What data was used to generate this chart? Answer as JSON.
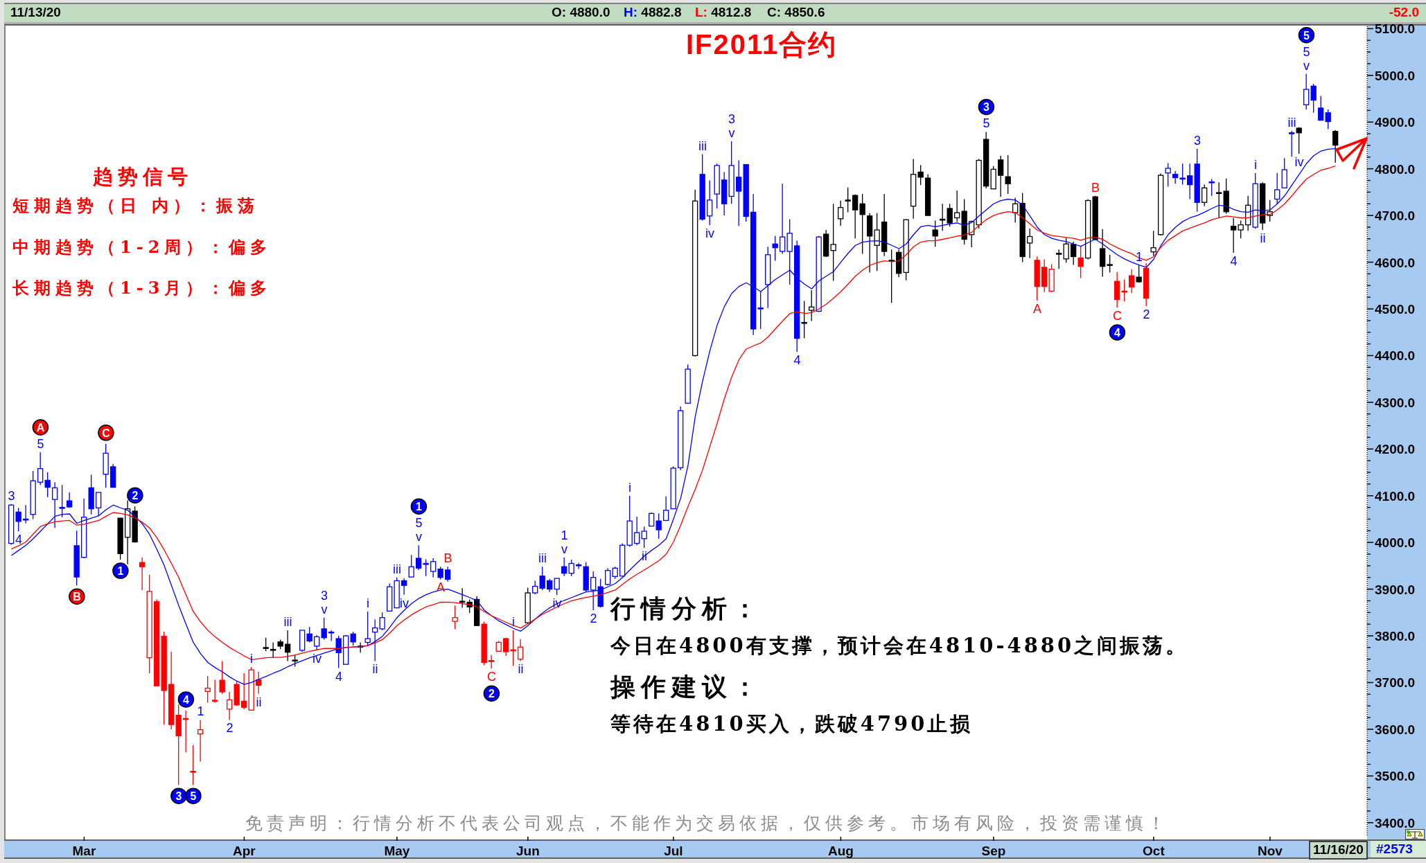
{
  "chart_data": {
    "type": "candlestick",
    "title": "IF2011合约",
    "categories": [
      null,
      null,
      null,
      null,
      null,
      null,
      null,
      null,
      null,
      null,
      "Mar",
      null,
      null,
      null,
      null,
      null,
      null,
      null,
      null,
      null,
      null,
      null,
      null,
      null,
      null,
      null,
      null,
      null,
      null,
      null,
      null,
      null,
      "Apr",
      null,
      null,
      null,
      null,
      null,
      null,
      null,
      null,
      null,
      null,
      null,
      null,
      null,
      null,
      null,
      null,
      null,
      null,
      null,
      null,
      "May",
      null,
      null,
      null,
      null,
      null,
      null,
      null,
      null,
      null,
      null,
      null,
      null,
      null,
      null,
      null,
      null,
      null,
      "Jun",
      null,
      null,
      null,
      null,
      null,
      null,
      null,
      null,
      null,
      null,
      null,
      null,
      null,
      null,
      null,
      null,
      null,
      null,
      null,
      "Jul",
      null,
      null,
      null,
      null,
      null,
      null,
      null,
      null,
      null,
      null,
      null,
      null,
      null,
      null,
      null,
      null,
      null,
      null,
      null,
      null,
      null,
      null,
      "Aug",
      null,
      null,
      null,
      null,
      null,
      null,
      null,
      null,
      null,
      null,
      null,
      null,
      null,
      null,
      null,
      null,
      null,
      null,
      null,
      null,
      "Sep",
      null,
      null,
      null,
      null,
      null,
      null,
      null,
      null,
      null,
      null,
      null,
      null,
      null,
      null,
      null,
      null,
      null,
      null,
      null,
      null,
      null,
      "Oct",
      null,
      null,
      null,
      null,
      null,
      null,
      null,
      null,
      null,
      null,
      null,
      null,
      null,
      null,
      null,
      "Nov",
      null,
      null,
      null,
      null,
      null,
      null,
      null,
      null,
      null
    ],
    "ohlc": [
      [
        3998,
        4082,
        3995,
        4080
      ],
      [
        4065,
        4074,
        4024,
        4045
      ],
      [
        4048,
        4080,
        4041,
        4050
      ],
      [
        4060,
        4153,
        4050,
        4132
      ],
      [
        4129,
        4193,
        4123,
        4158
      ],
      [
        4133,
        4150,
        4097,
        4118
      ],
      [
        4092,
        4129,
        4031,
        4117
      ],
      [
        4075,
        4123,
        4054,
        4073
      ],
      [
        4089,
        4107,
        4074,
        4076
      ],
      [
        3993,
        4025,
        3908,
        3926
      ],
      [
        3968,
        4094,
        3966,
        4054
      ],
      [
        4117,
        4145,
        4060,
        4072
      ],
      [
        4074,
        4107,
        4057,
        4107
      ],
      [
        4146,
        4211,
        4117,
        4191
      ],
      [
        4162,
        4168,
        4117,
        4118
      ],
      [
        4052,
        4052,
        3963,
        3976
      ],
      [
        4011,
        4090,
        3953,
        4072
      ],
      [
        4067,
        4077,
        4000,
        4001
      ],
      [
        3957,
        3968,
        3898,
        3948
      ],
      [
        3753,
        3931,
        3720,
        3895
      ],
      [
        3873,
        3878,
        3693,
        3693
      ],
      [
        3799,
        3809,
        3610,
        3683
      ],
      [
        3696,
        3766,
        3600,
        3610
      ],
      [
        3630,
        3653,
        3481,
        3586
      ],
      [
        3623,
        3640,
        3551,
        3621
      ],
      [
        3510,
        3566,
        3481,
        3508
      ],
      [
        3590,
        3620,
        3531,
        3599
      ],
      [
        3681,
        3714,
        3657,
        3688
      ],
      [
        3662,
        3706,
        3657,
        3660
      ],
      [
        3705,
        3746,
        3676,
        3680
      ],
      [
        3643,
        3680,
        3620,
        3663
      ],
      [
        3696,
        3703,
        3650,
        3652
      ],
      [
        3660,
        3720,
        3643,
        3647
      ],
      [
        3641,
        3733,
        3640,
        3727
      ],
      [
        3706,
        3723,
        3676,
        3694
      ],
      [
        3775,
        3796,
        3767,
        3773
      ],
      [
        3771,
        3786,
        3753,
        3769
      ],
      [
        3787,
        3792,
        3772,
        3778
      ],
      [
        3782,
        3812,
        3746,
        3765
      ],
      [
        3748,
        3759,
        3734,
        3747
      ],
      [
        3769,
        3812,
        3766,
        3812
      ],
      [
        3804,
        3819,
        3786,
        3789
      ],
      [
        3778,
        3802,
        3769,
        3798
      ],
      [
        3815,
        3839,
        3792,
        3796
      ],
      [
        3808,
        3812,
        3789,
        3807
      ],
      [
        3794,
        3800,
        3731,
        3764
      ],
      [
        3739,
        3802,
        3738,
        3800
      ],
      [
        3804,
        3809,
        3779,
        3787
      ],
      [
        3778,
        3786,
        3764,
        3776
      ],
      [
        3786,
        3852,
        3779,
        3794
      ],
      [
        3808,
        3835,
        3746,
        3817
      ],
      [
        3815,
        3850,
        3812,
        3839
      ],
      [
        3853,
        3912,
        3852,
        3905
      ],
      [
        3860,
        3925,
        3859,
        3918
      ],
      [
        3918,
        3923,
        3888,
        3908
      ],
      [
        3926,
        3973,
        3925,
        3948
      ],
      [
        3966,
        3994,
        3941,
        3945
      ],
      [
        3955,
        3964,
        3928,
        3953
      ],
      [
        3938,
        3966,
        3925,
        3959
      ],
      [
        3943,
        3948,
        3921,
        3925
      ],
      [
        3941,
        3948,
        3916,
        3921
      ],
      [
        3831,
        3865,
        3814,
        3839
      ],
      [
        3874,
        3902,
        3860,
        3872
      ],
      [
        3872,
        3878,
        3849,
        3862
      ],
      [
        3878,
        3885,
        3821,
        3822
      ],
      [
        3825,
        3830,
        3737,
        3743
      ],
      [
        3747,
        3759,
        3730,
        3745
      ],
      [
        3767,
        3789,
        3766,
        3786
      ],
      [
        3794,
        3796,
        3757,
        3766
      ],
      [
        3770,
        3812,
        3736,
        3768
      ],
      [
        3750,
        3793,
        3746,
        3776
      ],
      [
        3828,
        3903,
        3826,
        3892
      ],
      [
        3892,
        3918,
        3889,
        3906
      ],
      [
        3928,
        3948,
        3898,
        3902
      ],
      [
        3918,
        3922,
        3894,
        3900
      ],
      [
        3900,
        3923,
        3887,
        3923
      ],
      [
        3948,
        3968,
        3928,
        3934
      ],
      [
        3934,
        3963,
        3928,
        3955
      ],
      [
        3952,
        3956,
        3943,
        3950
      ],
      [
        3948,
        3958,
        3894,
        3898
      ],
      [
        3898,
        3938,
        3855,
        3925
      ],
      [
        3905,
        3922,
        3861,
        3863
      ],
      [
        3910,
        3945,
        3908,
        3940
      ],
      [
        3927,
        3948,
        3922,
        3945
      ],
      [
        3928,
        3998,
        3928,
        3994
      ],
      [
        3994,
        4100,
        3991,
        4046
      ],
      [
        3998,
        4055,
        3994,
        4021
      ],
      [
        4008,
        4034,
        3988,
        4024
      ],
      [
        4035,
        4064,
        4034,
        4062
      ],
      [
        4046,
        4062,
        4008,
        4027
      ],
      [
        4047,
        4099,
        4046,
        4069
      ],
      [
        4072,
        4163,
        4071,
        4159
      ],
      [
        4160,
        4291,
        4155,
        4282
      ],
      [
        4298,
        4381,
        4297,
        4371
      ],
      [
        4400,
        4755,
        4398,
        4731
      ],
      [
        4788,
        4831,
        4689,
        4692
      ],
      [
        4699,
        4775,
        4679,
        4733
      ],
      [
        4746,
        4811,
        4715,
        4807
      ],
      [
        4776,
        4793,
        4700,
        4725
      ],
      [
        4741,
        4859,
        4725,
        4807
      ],
      [
        4782,
        4818,
        4678,
        4752
      ],
      [
        4809,
        4809,
        4687,
        4698
      ],
      [
        4707,
        4746,
        4444,
        4457
      ],
      [
        4502,
        4537,
        4457,
        4500
      ],
      [
        4552,
        4633,
        4502,
        4616
      ],
      [
        4639,
        4656,
        4603,
        4631
      ],
      [
        4623,
        4768,
        4618,
        4654
      ],
      [
        4623,
        4692,
        4552,
        4662
      ],
      [
        4635,
        4646,
        4408,
        4437
      ],
      [
        4471,
        4517,
        4437,
        4469
      ],
      [
        4497,
        4540,
        4474,
        4504
      ],
      [
        4495,
        4656,
        4493,
        4654
      ],
      [
        4660,
        4669,
        4611,
        4613
      ],
      [
        4625,
        4725,
        4560,
        4638
      ],
      [
        4693,
        4732,
        4678,
        4717
      ],
      [
        4733,
        4760,
        4707,
        4731
      ],
      [
        4743,
        4745,
        4651,
        4712
      ],
      [
        4725,
        4746,
        4618,
        4702
      ],
      [
        4699,
        4705,
        4578,
        4656
      ],
      [
        4636,
        4705,
        4581,
        4669
      ],
      [
        4686,
        4746,
        4613,
        4623
      ],
      [
        4604,
        4627,
        4513,
        4602
      ],
      [
        4621,
        4627,
        4568,
        4576
      ],
      [
        4578,
        4692,
        4561,
        4691
      ],
      [
        4720,
        4821,
        4693,
        4788
      ],
      [
        4793,
        4808,
        4765,
        4782
      ],
      [
        4780,
        4788,
        4700,
        4700
      ],
      [
        4669,
        4689,
        4633,
        4656
      ],
      [
        4692,
        4725,
        4667,
        4690
      ],
      [
        4715,
        4725,
        4676,
        4684
      ],
      [
        4695,
        4753,
        4686,
        4706
      ],
      [
        4709,
        4735,
        4638,
        4649
      ],
      [
        4659,
        4689,
        4632,
        4687
      ],
      [
        4680,
        4821,
        4672,
        4818
      ],
      [
        4863,
        4879,
        4758,
        4763
      ],
      [
        4757,
        4806,
        4757,
        4799
      ],
      [
        4819,
        4828,
        4740,
        4786
      ],
      [
        4783,
        4829,
        4746,
        4768
      ],
      [
        4706,
        4738,
        4685,
        4725
      ],
      [
        4726,
        4748,
        4600,
        4612
      ],
      [
        4641,
        4672,
        4609,
        4655
      ],
      [
        4604,
        4612,
        4518,
        4548
      ],
      [
        4589,
        4606,
        4536,
        4548
      ],
      [
        4538,
        4596,
        4536,
        4585
      ],
      [
        4619,
        4627,
        4586,
        4617
      ],
      [
        4607,
        4652,
        4599,
        4639
      ],
      [
        4638,
        4644,
        4594,
        4612
      ],
      [
        4609,
        4634,
        4566,
        4591
      ],
      [
        4609,
        4735,
        4606,
        4732
      ],
      [
        4740,
        4742,
        4647,
        4649
      ],
      [
        4629,
        4671,
        4569,
        4591
      ],
      [
        4595,
        4616,
        4578,
        4593
      ],
      [
        4559,
        4579,
        4503,
        4520
      ],
      [
        4538,
        4563,
        4516,
        4536
      ],
      [
        4571,
        4585,
        4534,
        4547
      ],
      [
        4568,
        4593,
        4556,
        4558
      ],
      [
        4587,
        4598,
        4506,
        4523
      ],
      [
        4622,
        4667,
        4614,
        4631
      ],
      [
        4659,
        4790,
        4657,
        4786
      ],
      [
        4791,
        4812,
        4762,
        4801
      ],
      [
        4788,
        4795,
        4768,
        4781
      ],
      [
        4780,
        4811,
        4766,
        4778
      ],
      [
        4785,
        4811,
        4735,
        4766
      ],
      [
        4810,
        4843,
        4708,
        4728
      ],
      [
        4728,
        4766,
        4720,
        4759
      ],
      [
        4772,
        4778,
        4742,
        4770
      ],
      [
        4749,
        4771,
        4695,
        4747
      ],
      [
        4752,
        4779,
        4704,
        4708
      ],
      [
        4677,
        4695,
        4620,
        4669
      ],
      [
        4669,
        4689,
        4651,
        4680
      ],
      [
        4680,
        4742,
        4667,
        4722
      ],
      [
        4675,
        4791,
        4672,
        4768
      ],
      [
        4768,
        4771,
        4669,
        4684
      ],
      [
        4700,
        4733,
        4687,
        4708
      ],
      [
        4735,
        4791,
        4725,
        4755
      ],
      [
        4759,
        4823,
        4758,
        4798
      ],
      [
        4877,
        4881,
        4826,
        4875
      ],
      [
        4887,
        4889,
        4832,
        4877
      ],
      [
        4937,
        5003,
        4927,
        4970
      ],
      [
        4977,
        4982,
        4920,
        4947
      ],
      [
        4930,
        4956,
        4903,
        4904
      ],
      [
        4920,
        4927,
        4885,
        4901
      ],
      [
        4880.0,
        4882.8,
        4812.8,
        4850.6
      ]
    ],
    "colors": [
      "#0000ff",
      "#0000ff",
      "#0000ff",
      "#0000ff",
      "#0000ff",
      "#0000ff",
      "#0000ff",
      "#0000ff",
      "#0000ff",
      "#0000ff",
      "#0000ff",
      "#0000ff",
      "#0000ff",
      "#0000ff",
      "#0000ff",
      "#000000",
      "#000000",
      "#000000",
      "#ff0000",
      "#ff0000",
      "#ff0000",
      "#ff0000",
      "#ff0000",
      "#ff0000",
      "#ff0000",
      "#ff0000",
      "#ff0000",
      "#ff0000",
      "#ff0000",
      "#ff0000",
      "#ff0000",
      "#ff0000",
      "#ff0000",
      "#ff0000",
      "#ff0000",
      "#000000",
      "#000000",
      "#000000",
      "#000000",
      "#000000",
      "#0000ff",
      "#0000ff",
      "#0000ff",
      "#0000ff",
      "#0000ff",
      "#0000ff",
      "#0000ff",
      "#0000ff",
      "#000000",
      "#0000ff",
      "#0000ff",
      "#0000ff",
      "#0000ff",
      "#0000ff",
      "#0000ff",
      "#0000ff",
      "#0000ff",
      "#0000ff",
      "#0000ff",
      "#0000ff",
      "#0000ff",
      "#ff0000",
      "#000000",
      "#000000",
      "#000000",
      "#ff0000",
      "#ff0000",
      "#ff0000",
      "#ff0000",
      "#ff0000",
      "#ff0000",
      "#000000",
      "#0000ff",
      "#0000ff",
      "#0000ff",
      "#0000ff",
      "#0000ff",
      "#0000ff",
      "#0000ff",
      "#0000ff",
      "#0000ff",
      "#0000ff",
      "#0000ff",
      "#0000ff",
      "#0000ff",
      "#0000ff",
      "#0000ff",
      "#0000ff",
      "#0000ff",
      "#0000ff",
      "#0000ff",
      "#0000ff",
      "#0000ff",
      "#0000ff",
      "#000000",
      "#0000ff",
      "#0000ff",
      "#0000ff",
      "#0000ff",
      "#0000ff",
      "#0000ff",
      "#0000ff",
      "#0000ff",
      "#0000ff",
      "#0000ff",
      "#0000ff",
      "#0000ff",
      "#0000ff",
      "#0000ff",
      "#000000",
      "#000000",
      "#0000ff",
      "#000000",
      "#000000",
      "#000000",
      "#000000",
      "#000000",
      "#000000",
      "#000000",
      "#000000",
      "#000000",
      "#000000",
      "#000000",
      "#000000",
      "#000000",
      "#000000",
      "#000000",
      "#000000",
      "#000000",
      "#000000",
      "#000000",
      "#000000",
      "#000000",
      "#000000",
      "#000000",
      "#000000",
      "#000000",
      "#000000",
      "#000000",
      "#000000",
      "#000000",
      "#ff0000",
      "#ff0000",
      "#ff0000",
      "#000000",
      "#000000",
      "#000000",
      "#ff0000",
      "#000000",
      "#000000",
      "#000000",
      "#000000",
      "#ff0000",
      "#ff0000",
      "#ff0000",
      "#000000",
      "#ff0000",
      "#000000",
      "#000000",
      "#0000ff",
      "#0000ff",
      "#0000ff",
      "#0000ff",
      "#0000ff",
      "#000000",
      "#0000ff",
      "#000000",
      "#000000",
      "#000000",
      "#000000",
      "#000000",
      "#0000ff",
      "#000000",
      "#000000",
      "#0000ff",
      "#0000ff",
      "#0000ff",
      "#000000",
      "#0000ff",
      "#0000ff",
      "#0000ff",
      "#0000ff",
      "#000000"
    ],
    "series": [
      {
        "type": "line",
        "color": "#0000ff",
        "values": [
          3972,
          3983,
          3994,
          4008,
          4024,
          4040,
          4056,
          4060,
          4061,
          4041,
          4047,
          4052,
          4057,
          4070,
          4080,
          4074,
          4069,
          4056,
          4040,
          4017,
          3985,
          3951,
          3908,
          3865,
          3825,
          3786,
          3762,
          3743,
          3732,
          3723,
          3712,
          3703,
          3696,
          3700,
          3707,
          3713,
          3720,
          3726,
          3734,
          3741,
          3747,
          3753,
          3758,
          3763,
          3768,
          3773,
          3775,
          3776,
          3777,
          3779,
          3788,
          3799,
          3818,
          3839,
          3855,
          3869,
          3880,
          3888,
          3894,
          3898,
          3900,
          3894,
          3888,
          3882,
          3875,
          3855,
          3843,
          3832,
          3824,
          3816,
          3810,
          3822,
          3836,
          3849,
          3860,
          3869,
          3876,
          3882,
          3888,
          3894,
          3896,
          3898,
          3905,
          3912,
          3925,
          3941,
          3956,
          3971,
          3983,
          3994,
          4008,
          4050,
          4095,
          4165,
          4270,
          4345,
          4410,
          4465,
          4505,
          4533,
          4548,
          4556,
          4547,
          4537,
          4550,
          4563,
          4573,
          4583,
          4566,
          4553,
          4543,
          4560,
          4570,
          4580,
          4600,
          4619,
          4636,
          4643,
          4645,
          4646,
          4643,
          4636,
          4629,
          4639,
          4659,
          4676,
          4679,
          4676,
          4679,
          4682,
          4684,
          4679,
          4685,
          4699,
          4712,
          4725,
          4732,
          4735,
          4733,
          4722,
          4699,
          4675,
          4659,
          4651,
          4647,
          4644,
          4639,
          4634,
          4642,
          4649,
          4639,
          4627,
          4616,
          4607,
          4600,
          4594,
          4589,
          4606,
          4636,
          4659,
          4675,
          4687,
          4695,
          4700,
          4707,
          4715,
          4722,
          4720,
          4713,
          4708,
          4707,
          4712,
          4710,
          4712,
          4725,
          4742,
          4765,
          4788,
          4811,
          4828,
          4838,
          4842,
          4843
        ]
      },
      {
        "type": "line",
        "color": "#ff0000",
        "values": [
          3986,
          3993,
          4001,
          4018,
          4034,
          4040,
          4044,
          4046,
          4047,
          4037,
          4039,
          4043,
          4047,
          4056,
          4064,
          4062,
          4059,
          4052,
          4043,
          4031,
          4010,
          3984,
          3955,
          3925,
          3888,
          3852,
          3830,
          3812,
          3798,
          3786,
          3775,
          3766,
          3757,
          3749,
          3751,
          3753,
          3754,
          3754,
          3756,
          3759,
          3763,
          3767,
          3770,
          3773,
          3773,
          3773,
          3775,
          3776,
          3777,
          3779,
          3785,
          3792,
          3806,
          3822,
          3834,
          3845,
          3854,
          3862,
          3867,
          3872,
          3872,
          3871,
          3869,
          3867,
          3862,
          3852,
          3843,
          3836,
          3829,
          3822,
          3817,
          3826,
          3836,
          3846,
          3854,
          3862,
          3869,
          3875,
          3879,
          3882,
          3885,
          3888,
          3893,
          3898,
          3910,
          3922,
          3932,
          3941,
          3951,
          3961,
          3975,
          4001,
          4037,
          4077,
          4114,
          4155,
          4205,
          4255,
          4308,
          4354,
          4391,
          4414,
          4421,
          4427,
          4440,
          4457,
          4474,
          4490,
          4494,
          4490,
          4492,
          4500,
          4510,
          4523,
          4537,
          4553,
          4570,
          4583,
          4593,
          4599,
          4603,
          4601,
          4603,
          4616,
          4633,
          4643,
          4646,
          4646,
          4649,
          4652,
          4656,
          4658,
          4664,
          4679,
          4691,
          4700,
          4705,
          4708,
          4706,
          4695,
          4682,
          4669,
          4662,
          4657,
          4655,
          4653,
          4651,
          4647,
          4652,
          4653,
          4649,
          4639,
          4631,
          4624,
          4618,
          4609,
          4604,
          4612,
          4632,
          4647,
          4657,
          4667,
          4673,
          4679,
          4684,
          4691,
          4695,
          4699,
          4697,
          4695,
          4695,
          4699,
          4702,
          4702,
          4712,
          4725,
          4742,
          4761,
          4778,
          4788,
          4797,
          4801,
          4806
        ]
      }
    ],
    "ylim": [
      3370,
      5105
    ],
    "yticks": [
      {
        "value": 3400,
        "label": "3400.0"
      },
      {
        "value": 3500,
        "label": "3500.0"
      },
      {
        "value": 3600,
        "label": "3600.0"
      },
      {
        "value": 3700,
        "label": "3700.0"
      },
      {
        "value": 3800,
        "label": "3800.0"
      },
      {
        "value": 3900,
        "label": "3900.0"
      },
      {
        "value": 4000,
        "label": "4000.0"
      },
      {
        "value": 4100,
        "label": "4100.0"
      },
      {
        "value": 4200,
        "label": "4200.0"
      },
      {
        "value": 4300,
        "label": "4300.0"
      },
      {
        "value": 4400,
        "label": "4400.0"
      },
      {
        "value": 4500,
        "label": "4500.0"
      },
      {
        "value": 4600,
        "label": "4600.0"
      },
      {
        "value": 4700,
        "label": "4700.0"
      },
      {
        "value": 4800,
        "label": "4800.0"
      },
      {
        "value": 4900,
        "label": "4900.0"
      },
      {
        "value": 5000,
        "label": "5000.0"
      },
      {
        "value": 5100,
        "label": "5100.0"
      }
    ],
    "annotations": [
      "11/13/20",
      "O: 4880.0",
      "H: 4882.8",
      "L: 4812.8",
      "C: 4850.6",
      "-52.0",
      "趋势信号",
      "短期趋势（日 内）：振荡",
      "中期趋势（1-2周）：偏多",
      "长期趋势（1-3月）：偏多",
      "行情分析：",
      "今日在4800有支撑，预计会在4810-4880之间振荡。",
      "操作建议：",
      "等待在4810买入，跌破4790止损",
      "免责声明：行情分析不代表公司观点，不能作为交易依据，仅供参考。市场有风险，投资需谨慎！",
      "11/16/20",
      "#2573",
      "3",
      "4",
      "A",
      "5",
      "B",
      "C",
      "1",
      "2",
      "3",
      "4",
      "5",
      "1",
      "2",
      "i",
      "ii",
      "iii",
      "iv",
      "3",
      "v",
      "4",
      "i",
      "ii",
      "iii",
      "iv",
      "1",
      "5",
      "v",
      "A",
      "B",
      "2",
      "C",
      "i",
      "ii",
      "iii",
      "iv",
      "1",
      "v",
      "2",
      "i",
      "ii",
      "iii",
      "iv",
      "3",
      "v",
      "4",
      "3",
      "5",
      "A",
      "B",
      "4",
      "C",
      "1",
      "2",
      "3",
      "4",
      "i",
      "ii",
      "iii",
      "iv",
      "5",
      "5",
      "v"
    ]
  }
}
